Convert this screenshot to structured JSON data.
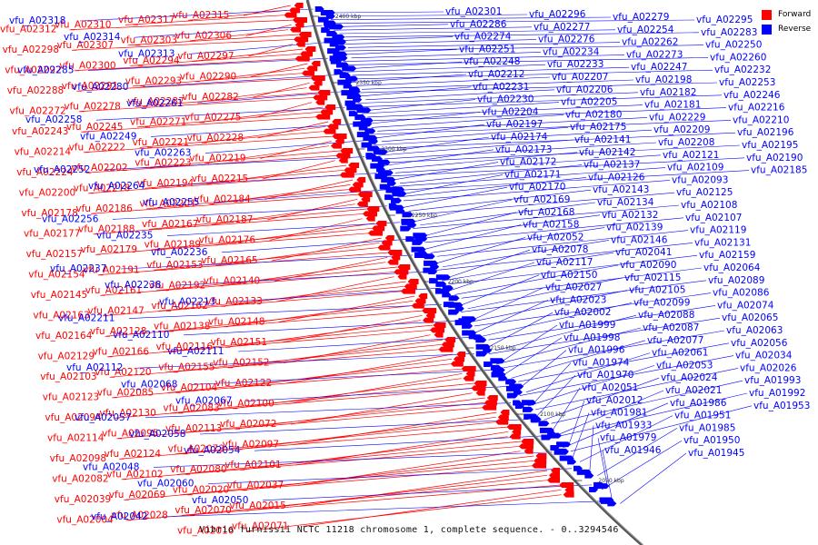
{
  "title": "Vibrio furnissii NCTC 11218 chromosome 1, complete sequence. - 0..3294546",
  "legend": {
    "forward_label": "Forward",
    "reverse_label": "Reverse",
    "forward_color": "#ff0000",
    "reverse_color": "#0000ff"
  },
  "axis_ticks": [
    "2400 kbp",
    "2350 kbp",
    "2300 kbp",
    "2250 kbp",
    "2200 kbp",
    "2150 kbp",
    "2100 kbp",
    "2050 kbp"
  ],
  "forward_genes": [
    "vfu_A02315",
    "vfu_A02317",
    "vfu_A02310",
    "vfu_A02312",
    "vfu_A02306",
    "vfu_A02303",
    "vfu_A02307",
    "vfu_A02298",
    "vfu_A02297",
    "vfu_A02294",
    "vfu_A02300",
    "vfu_A02292",
    "vfu_A02290",
    "vfu_A02293",
    "vfu_A02291",
    "vfu_A02288",
    "vfu_A02282",
    "vfu_A02287",
    "vfu_A02278",
    "vfu_A02272",
    "vfu_A02275",
    "vfu_A02271",
    "vfu_A02245",
    "vfu_A02243",
    "vfu_A02228",
    "vfu_A02221",
    "vfu_A02222",
    "vfu_A02214",
    "vfu_A02219",
    "vfu_A02223",
    "vfu_A02202",
    "vfu_A02224",
    "vfu_A02215",
    "vfu_A02194",
    "vfu_A02218",
    "vfu_A02200",
    "vfu_A02184",
    "vfu_A02201",
    "vfu_A02186",
    "vfu_A02178",
    "vfu_A02187",
    "vfu_A02167",
    "vfu_A02188",
    "vfu_A02177",
    "vfu_A02176",
    "vfu_A02189",
    "vfu_A02179",
    "vfu_A02157",
    "vfu_A02165",
    "vfu_A02153",
    "vfu_A02191",
    "vfu_A02154",
    "vfu_A02140",
    "vfu_A02192",
    "vfu_A02161",
    "vfu_A02145",
    "vfu_A02133",
    "vfu_A02162",
    "vfu_A02147",
    "vfu_A02163",
    "vfu_A02148",
    "vfu_A02138",
    "vfu_A02128",
    "vfu_A02164",
    "vfu_A02151",
    "vfu_A02116",
    "vfu_A02166",
    "vfu_A02129",
    "vfu_A02152",
    "vfu_A02155",
    "vfu_A02120",
    "vfu_A02103",
    "vfu_A02122",
    "vfu_A02104",
    "vfu_A02085",
    "vfu_A02123",
    "vfu_A02100",
    "vfu_A02083",
    "vfu_A02130",
    "vfu_A02094",
    "vfu_A02072",
    "vfu_A02113",
    "vfu_A02095",
    "vfu_A02114",
    "vfu_A02097",
    "vfu_A02073",
    "vfu_A02124",
    "vfu_A02098",
    "vfu_A02101",
    "vfu_A02080",
    "vfu_A02102",
    "vfu_A02082",
    "vfu_A02037",
    "vfu_A02020",
    "vfu_A02069",
    "vfu_A02039",
    "vfu_A02015",
    "vfu_A02070",
    "vfu_A02028",
    "vfu_A02004",
    "vfu_A02071",
    "vfu_A02016",
    "vfu_A01994",
    "vfu_A02075",
    "vfu_A02076"
  ],
  "reverse_genes": [
    "vfu_A02318",
    "vfu_A02314",
    "vfu_A02313",
    "vfu_A02285",
    "vfu_A02280",
    "vfu_A02261",
    "vfu_A02258",
    "vfu_A02249",
    "vfu_A02263",
    "vfu_A02252",
    "vfu_A02264",
    "vfu_A02255",
    "vfu_A02256",
    "vfu_A02235",
    "vfu_A02236",
    "vfu_A02237",
    "vfu_A02238",
    "vfu_A02213",
    "vfu_A02211",
    "vfu_A02110",
    "vfu_A02111",
    "vfu_A02112",
    "vfu_A02068",
    "vfu_A02067",
    "vfu_A02057",
    "vfu_A02058",
    "vfu_A02054",
    "vfu_A02048",
    "vfu_A02060",
    "vfu_A02050",
    "vfu_A02042",
    "vfu_A02301",
    "vfu_A02296",
    "vfu_A02279",
    "vfu_A02295",
    "vfu_A02286",
    "vfu_A02277",
    "vfu_A02254",
    "vfu_A02283",
    "vfu_A02274",
    "vfu_A02276",
    "vfu_A02262",
    "vfu_A02250",
    "vfu_A02251",
    "vfu_A02234",
    "vfu_A02273",
    "vfu_A02260",
    "vfu_A02248",
    "vfu_A02233",
    "vfu_A02247",
    "vfu_A02232",
    "vfu_A02212",
    "vfu_A02207",
    "vfu_A02198",
    "vfu_A02253",
    "vfu_A02231",
    "vfu_A02206",
    "vfu_A02182",
    "vfu_A02246",
    "vfu_A02230",
    "vfu_A02205",
    "vfu_A02181",
    "vfu_A02216",
    "vfu_A02204",
    "vfu_A02180",
    "vfu_A02229",
    "vfu_A02210",
    "vfu_A02197",
    "vfu_A02175",
    "vfu_A02209",
    "vfu_A02196",
    "vfu_A02174",
    "vfu_A02141",
    "vfu_A02208",
    "vfu_A02195",
    "vfu_A02173",
    "vfu_A02142",
    "vfu_A02121",
    "vfu_A02190",
    "vfu_A02172",
    "vfu_A02137",
    "vfu_A02109",
    "vfu_A02185",
    "vfu_A02171",
    "vfu_A02126",
    "vfu_A02093",
    "vfu_A02183",
    "vfu_A02170",
    "vfu_A02143",
    "vfu_A02125",
    "vfu_A02092",
    "vfu_A02169",
    "vfu_A02134",
    "vfu_A02108",
    "vfu_A02079",
    "vfu_A02168",
    "vfu_A02132",
    "vfu_A02107",
    "vfu_A02066",
    "vfu_A02158",
    "vfu_A02139",
    "vfu_A02119",
    "vfu_A02091",
    "vfu_A02052",
    "vfu_A02146",
    "vfu_A02131",
    "vfu_A02106",
    "vfu_A02078",
    "vfu_A02041",
    "vfu_A02159",
    "vfu_A02136",
    "vfu_A02117",
    "vfu_A02090",
    "vfu_A02064",
    "vfu_A02031",
    "vfu_A02150",
    "vfu_A02115",
    "vfu_A02089",
    "vfu_A02062",
    "vfu_A02027",
    "vfu_A02105",
    "vfu_A02086",
    "vfu_A02059",
    "vfu_A02023",
    "vfu_A02099",
    "vfu_A02074",
    "vfu_A02049",
    "vfu_A02002",
    "vfu_A02088",
    "vfu_A02065",
    "vfu_A02040",
    "vfu_A01999",
    "vfu_A02087",
    "vfu_A02063",
    "vfu_A02038",
    "vfu_A01998",
    "vfu_A02077",
    "vfu_A02056",
    "vfu_A02029",
    "vfu_A01996",
    "vfu_A02061",
    "vfu_A02034",
    "vfu_A02001",
    "vfu_A01974",
    "vfu_A02053",
    "vfu_A02026",
    "vfu_A01995",
    "vfu_A01970",
    "vfu_A02024",
    "vfu_A01993",
    "vfu_A01958",
    "vfu_A02051",
    "vfu_A02021",
    "vfu_A01992",
    "vfu_A01954",
    "vfu_A02012",
    "vfu_A01986",
    "vfu_A01953",
    "vfu_A02005",
    "vfu_A01981",
    "vfu_A01951",
    "vfu_A01990",
    "vfu_A01962",
    "vfu_A01933",
    "vfu_A01985",
    "vfu_A01957",
    "vfu_A01931",
    "vfu_A01979",
    "vfu_A01950",
    "vfu_A01978",
    "vfu_A01949",
    "vfu_A01946",
    "vfu_A01945",
    "vfu_A01943"
  ]
}
